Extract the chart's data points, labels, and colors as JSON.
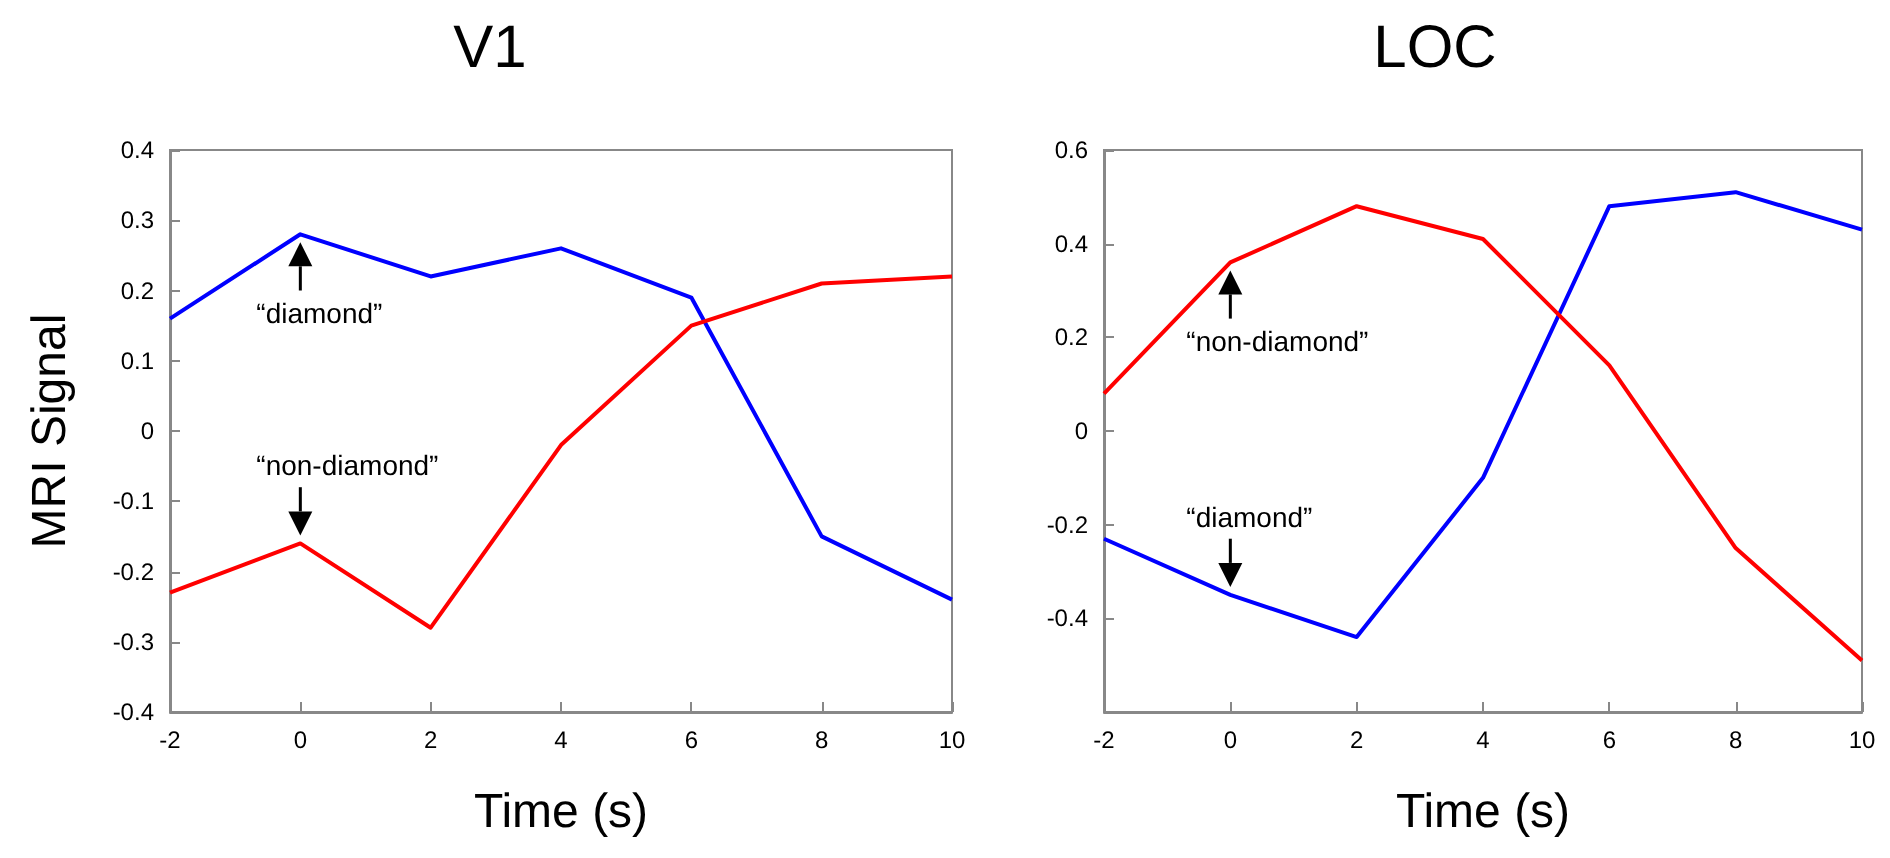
{
  "chart_data": [
    {
      "type": "line",
      "title": "V1",
      "xlabel": "Time (s)",
      "ylabel": "MRI Signal",
      "x": [
        -2,
        0,
        2,
        4,
        6,
        8,
        10
      ],
      "series": [
        {
          "name": "“diamond”",
          "color": "#0000ff",
          "values": [
            0.16,
            0.28,
            0.22,
            0.26,
            0.19,
            -0.15,
            -0.24
          ]
        },
        {
          "name": "“non-diamond”",
          "color": "#ff0000",
          "values": [
            -0.23,
            -0.16,
            -0.28,
            -0.02,
            0.15,
            0.21,
            0.22
          ]
        }
      ],
      "xlim": [
        -2,
        10
      ],
      "xticks": [
        -2,
        0,
        2,
        4,
        6,
        8,
        10
      ],
      "ylim": [
        -0.4,
        0.4
      ],
      "yticks": [
        -0.4,
        -0.3,
        -0.2,
        -0.1,
        0,
        0.1,
        0.2,
        0.3,
        0.4
      ]
    },
    {
      "type": "line",
      "title": "LOC",
      "xlabel": "Time (s)",
      "x": [
        -2,
        0,
        2,
        4,
        6,
        8,
        10
      ],
      "series": [
        {
          "name": "“diamond”",
          "color": "#0000ff",
          "values": [
            -0.23,
            -0.35,
            -0.44,
            -0.1,
            0.48,
            0.51,
            0.43
          ]
        },
        {
          "name": "“non-diamond”",
          "color": "#ff0000",
          "values": [
            0.08,
            0.36,
            0.48,
            0.41,
            0.14,
            -0.25,
            -0.49
          ]
        }
      ],
      "xlim": [
        -2,
        10
      ],
      "xticks": [
        -2,
        0,
        2,
        4,
        6,
        8,
        10
      ],
      "ylim": [
        -0.6,
        0.6
      ],
      "yticks": [
        {
          "value": -0.6,
          "label": null
        },
        -0.4,
        -0.2,
        0,
        0.2,
        0.4,
        0.6
      ]
    }
  ]
}
